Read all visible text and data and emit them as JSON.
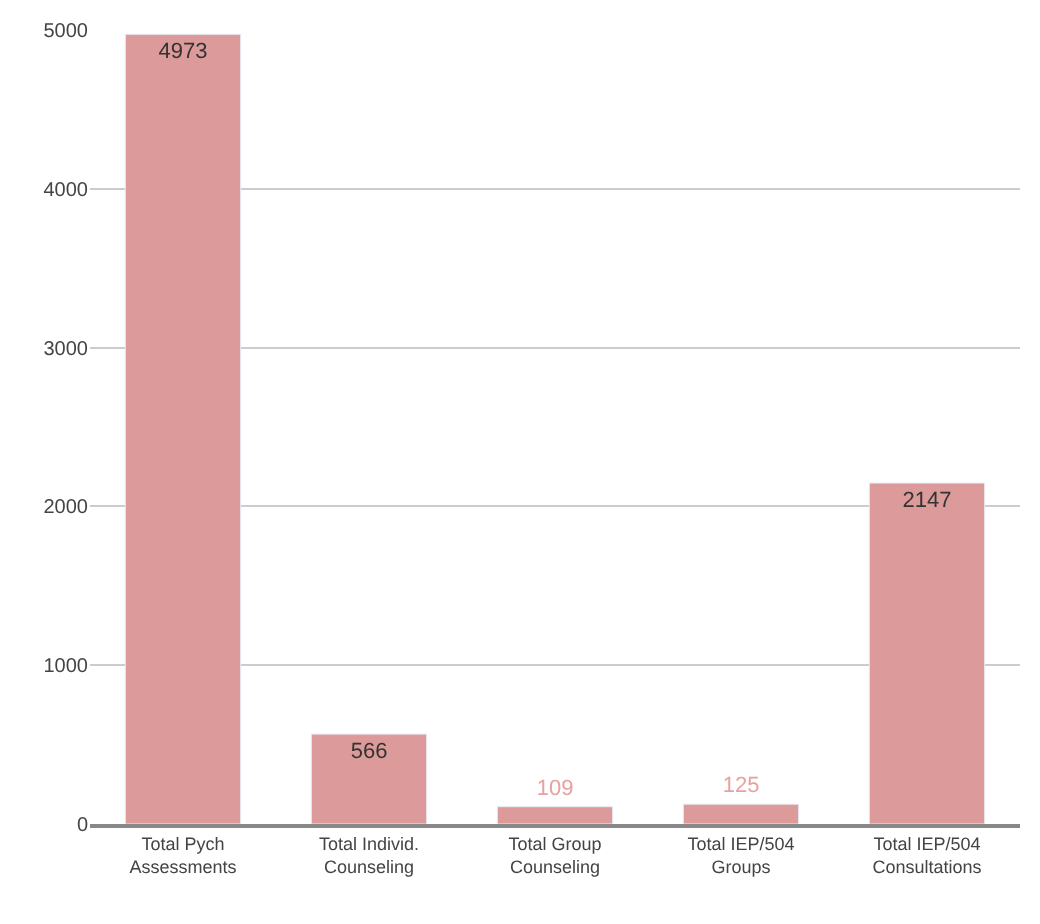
{
  "chart_data": {
    "type": "bar",
    "categories": [
      "Total Pych\nAssessments",
      "Total Individ.\nCounseling",
      "Total Group\nCounseling",
      "Total IEP/504\nGroups",
      "Total IEP/504\nConsultations"
    ],
    "values": [
      4973,
      566,
      109,
      125,
      2147
    ],
    "color": "#dc9a9a",
    "data_labels": true,
    "ylim": [
      0,
      5000
    ],
    "yticks": [
      0,
      1000,
      2000,
      3000,
      4000,
      5000
    ],
    "grid": "y",
    "legend": false
  }
}
